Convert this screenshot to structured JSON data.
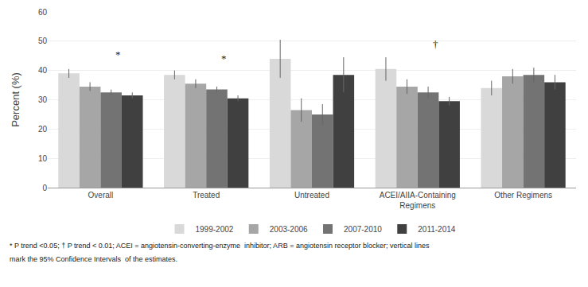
{
  "chart_data": {
    "type": "bar",
    "categories": [
      "Overall",
      "Treated",
      "Untreated",
      "ACEI/AIIA-Containing\nRegimens",
      "Other Regimens"
    ],
    "series": [
      {
        "name": "1999-2002",
        "color": "#d9d9d9",
        "values": [
          39.0,
          38.5,
          44.0,
          40.5,
          34.0
        ],
        "errors": [
          1.5,
          1.5,
          6.5,
          4.0,
          2.5
        ]
      },
      {
        "name": "2003-2006",
        "color": "#a6a6a6",
        "values": [
          34.5,
          35.5,
          26.5,
          34.5,
          38.0
        ],
        "errors": [
          1.5,
          1.5,
          4.0,
          2.5,
          2.5
        ]
      },
      {
        "name": "2007-2010",
        "color": "#737373",
        "values": [
          32.5,
          33.5,
          25.0,
          32.5,
          38.5
        ],
        "errors": [
          1.0,
          1.0,
          3.5,
          2.0,
          2.5
        ]
      },
      {
        "name": "2011-2014",
        "color": "#404040",
        "values": [
          31.5,
          30.5,
          38.5,
          29.5,
          36.0
        ],
        "errors": [
          1.0,
          1.0,
          6.0,
          1.5,
          2.5
        ]
      }
    ],
    "ylabel": "Percent (%)",
    "ylim": [
      0,
      60
    ],
    "yticks": [
      0,
      10,
      20,
      30,
      40,
      50,
      60
    ],
    "grid": true,
    "legend": "bottom",
    "annotations": [
      {
        "text": "*",
        "category": "Overall",
        "y": 43.0
      },
      {
        "text": "*",
        "category": "Treated",
        "y": 41.5
      },
      {
        "text": "†",
        "category": "ACEI/AIIA-Containing\nRegimens",
        "y": 46.5
      }
    ],
    "footnote": [
      "* P trend <0.05; † P trend < 0.01; ACEI = angiotensin-converting-enzyme  inhibitor; ARB = angiotensin receptor blocker; vertical lines",
      "mark the 95% Confidence Intervals  of the estimates."
    ]
  }
}
